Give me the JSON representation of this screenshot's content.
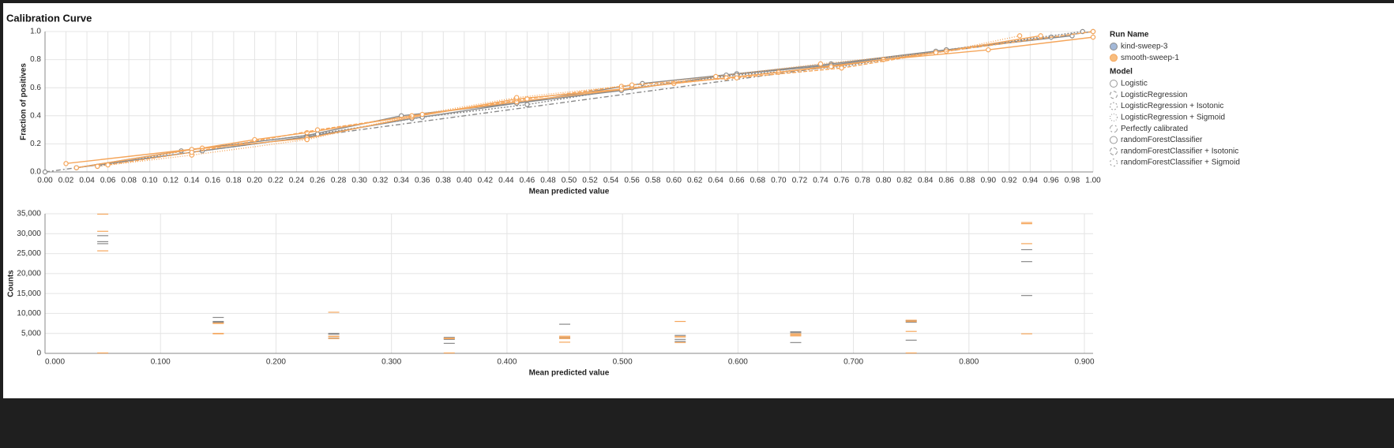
{
  "chart_data": [
    {
      "type": "line",
      "title": "Calibration Curve",
      "x_label": "Mean predicted value",
      "y_label": "Fraction of positives",
      "xlim": [
        0,
        1
      ],
      "ylim": [
        0,
        1
      ],
      "grid": true,
      "xticks": [
        {
          "value": 0,
          "label": "0.00"
        },
        {
          "value": 0.02,
          "label": "0.02"
        },
        {
          "value": 0.04,
          "label": "0.04"
        },
        {
          "value": 0.06,
          "label": "0.06"
        },
        {
          "value": 0.08,
          "label": "0.08"
        },
        {
          "value": 0.1,
          "label": "0.10"
        },
        {
          "value": 0.12,
          "label": "0.12"
        },
        {
          "value": 0.14,
          "label": "0.14"
        },
        {
          "value": 0.16,
          "label": "0.16"
        },
        {
          "value": 0.18,
          "label": "0.18"
        },
        {
          "value": 0.2,
          "label": "0.20"
        },
        {
          "value": 0.22,
          "label": "0.22"
        },
        {
          "value": 0.24,
          "label": "0.24"
        },
        {
          "value": 0.26,
          "label": "0.26"
        },
        {
          "value": 0.28,
          "label": "0.28"
        },
        {
          "value": 0.3,
          "label": "0.30"
        },
        {
          "value": 0.32,
          "label": "0.32"
        },
        {
          "value": 0.34,
          "label": "0.34"
        },
        {
          "value": 0.36,
          "label": "0.36"
        },
        {
          "value": 0.38,
          "label": "0.38"
        },
        {
          "value": 0.4,
          "label": "0.40"
        },
        {
          "value": 0.42,
          "label": "0.42"
        },
        {
          "value": 0.44,
          "label": "0.44"
        },
        {
          "value": 0.46,
          "label": "0.46"
        },
        {
          "value": 0.48,
          "label": "0.48"
        },
        {
          "value": 0.5,
          "label": "0.50"
        },
        {
          "value": 0.52,
          "label": "0.52"
        },
        {
          "value": 0.54,
          "label": "0.54"
        },
        {
          "value": 0.56,
          "label": "0.56"
        },
        {
          "value": 0.58,
          "label": "0.58"
        },
        {
          "value": 0.6,
          "label": "0.60"
        },
        {
          "value": 0.62,
          "label": "0.62"
        },
        {
          "value": 0.64,
          "label": "0.64"
        },
        {
          "value": 0.66,
          "label": "0.66"
        },
        {
          "value": 0.68,
          "label": "0.68"
        },
        {
          "value": 0.7,
          "label": "0.70"
        },
        {
          "value": 0.72,
          "label": "0.72"
        },
        {
          "value": 0.74,
          "label": "0.74"
        },
        {
          "value": 0.76,
          "label": "0.76"
        },
        {
          "value": 0.78,
          "label": "0.78"
        },
        {
          "value": 0.8,
          "label": "0.80"
        },
        {
          "value": 0.82,
          "label": "0.82"
        },
        {
          "value": 0.84,
          "label": "0.84"
        },
        {
          "value": 0.86,
          "label": "0.86"
        },
        {
          "value": 0.88,
          "label": "0.88"
        },
        {
          "value": 0.9,
          "label": "0.90"
        },
        {
          "value": 0.92,
          "label": "0.92"
        },
        {
          "value": 0.94,
          "label": "0.94"
        },
        {
          "value": 0.96,
          "label": "0.96"
        },
        {
          "value": 0.98,
          "label": "0.98"
        },
        {
          "value": 1,
          "label": "1.00"
        }
      ],
      "yticks": [
        {
          "value": 0,
          "label": "0.0"
        },
        {
          "value": 0.2,
          "label": "0.2"
        },
        {
          "value": 0.4,
          "label": "0.4"
        },
        {
          "value": 0.6,
          "label": "0.6"
        },
        {
          "value": 0.8,
          "label": "0.8"
        },
        {
          "value": 1,
          "label": "1.0"
        }
      ],
      "legend": {
        "run_title": "Run Name",
        "runs": [
          {
            "name": "kind-sweep-3",
            "color": "#a3b8d8",
            "line_color": "#8a8a8a"
          },
          {
            "name": "smooth-sweep-1",
            "color": "#f8bd7e",
            "line_color": "#f5a65b"
          }
        ],
        "model_title": "Model",
        "models": [
          {
            "name": "Logistic",
            "dash": "none"
          },
          {
            "name": "LogisticRegression",
            "dash": "4,3"
          },
          {
            "name": "LogisticRegression + Isotonic",
            "dash": "2,2"
          },
          {
            "name": "LogisticRegression + Sigmoid",
            "dash": "1,2"
          },
          {
            "name": "Perfectly calibrated",
            "dash": "6,3,2,3"
          },
          {
            "name": "randomForestClassifier",
            "dash": "none"
          },
          {
            "name": "randomForestClassifier + Isotonic",
            "dash": "5,2"
          },
          {
            "name": "randomForestClassifier + Sigmoid",
            "dash": "2,3"
          }
        ]
      },
      "series": [
        {
          "run": "kind-sweep-3",
          "model": "Logistic",
          "x": [
            0.03,
            0.13,
            0.25,
            0.34,
            0.45,
            0.57,
            0.66,
            0.75,
            0.86,
            0.98
          ],
          "values": [
            0.03,
            0.15,
            0.26,
            0.4,
            0.49,
            0.63,
            0.7,
            0.77,
            0.87,
            0.97
          ]
        },
        {
          "run": "kind-sweep-3",
          "model": "randomForestClassifier",
          "x": [
            0.03,
            0.15,
            0.25,
            0.35,
            0.45,
            0.55,
            0.65,
            0.75,
            0.85,
            0.96
          ],
          "values": [
            0.03,
            0.15,
            0.25,
            0.38,
            0.49,
            0.58,
            0.69,
            0.76,
            0.86,
            0.96
          ]
        },
        {
          "run": "kind-sweep-3",
          "model": "Perfectly calibrated",
          "x": [
            0,
            1
          ],
          "values": [
            0,
            1
          ]
        },
        {
          "run": "kind-sweep-3",
          "model": "LogisticRegression + Isotonic",
          "x": [
            0.05,
            0.14,
            0.26,
            0.36,
            0.46,
            0.56,
            0.66,
            0.76,
            0.86,
            0.99
          ],
          "values": [
            0.04,
            0.16,
            0.27,
            0.39,
            0.48,
            0.6,
            0.69,
            0.75,
            0.87,
            1.0
          ]
        },
        {
          "run": "smooth-sweep-1",
          "model": "Logistic",
          "x": [
            0.02,
            0.15,
            0.2,
            0.25,
            0.35,
            0.45,
            0.6,
            0.7,
            0.8,
            0.9,
            1.0
          ],
          "values": [
            0.06,
            0.17,
            0.23,
            0.28,
            0.4,
            0.5,
            0.63,
            0.71,
            0.8,
            0.87,
            0.96
          ]
        },
        {
          "run": "smooth-sweep-1",
          "model": "randomForestClassifier",
          "x": [
            0.03,
            0.14,
            0.25,
            0.35,
            0.45,
            0.55,
            0.65,
            0.75,
            0.85,
            0.95
          ],
          "values": [
            0.03,
            0.16,
            0.24,
            0.39,
            0.52,
            0.59,
            0.67,
            0.75,
            0.85,
            0.97
          ]
        },
        {
          "run": "smooth-sweep-1",
          "model": "LogisticRegression + Sigmoid",
          "x": [
            0.05,
            0.14,
            0.25,
            0.35,
            0.45,
            0.55,
            0.64,
            0.74,
            0.86,
            0.93
          ],
          "values": [
            0.04,
            0.12,
            0.23,
            0.4,
            0.53,
            0.61,
            0.68,
            0.77,
            0.86,
            0.97
          ]
        },
        {
          "run": "smooth-sweep-1",
          "model": "randomForestClassifier + Isotonic",
          "x": [
            0.06,
            0.14,
            0.26,
            0.36,
            0.46,
            0.56,
            0.66,
            0.76,
            0.85,
            1.0
          ],
          "values": [
            0.05,
            0.14,
            0.3,
            0.41,
            0.52,
            0.62,
            0.67,
            0.74,
            0.85,
            1.0
          ]
        }
      ]
    },
    {
      "type": "tick",
      "x_label": "Mean predicted value",
      "y_label": "Counts",
      "xlim": [
        0,
        0.9075
      ],
      "ylim": [
        0,
        35000
      ],
      "grid": true,
      "xticks": [
        {
          "value": 0,
          "label": "0.000"
        },
        {
          "value": 0.1,
          "label": "0.100"
        },
        {
          "value": 0.2,
          "label": "0.200"
        },
        {
          "value": 0.3,
          "label": "0.300"
        },
        {
          "value": 0.4,
          "label": "0.400"
        },
        {
          "value": 0.5,
          "label": "0.500"
        },
        {
          "value": 0.6,
          "label": "0.600"
        },
        {
          "value": 0.7,
          "label": "0.700"
        },
        {
          "value": 0.8,
          "label": "0.800"
        },
        {
          "value": 0.9,
          "label": "0.900"
        }
      ],
      "yticks": [
        0,
        {
          "value": 5000,
          "label": "5,000"
        },
        {
          "value": 10000,
          "label": "10,000"
        },
        {
          "value": 15000,
          "label": "15,000"
        },
        {
          "value": 20000,
          "label": "20,000"
        },
        {
          "value": 25000,
          "label": "25,000"
        },
        {
          "value": 30000,
          "label": "30,000"
        },
        {
          "value": 35000,
          "label": "35,000"
        }
      ],
      "x": [
        0.05,
        0.15,
        0.25,
        0.35,
        0.45,
        0.55,
        0.65,
        0.75,
        0.85
      ],
      "series": [
        {
          "run": "kind-sweep-3",
          "model": "Logistic",
          "values": [
            28000,
            8000,
            5000,
            3500,
            7300,
            3000,
            5200,
            8200,
            26000
          ]
        },
        {
          "run": "kind-sweep-3",
          "model": "randomForestClassifier",
          "values": [
            27500,
            9000,
            4800,
            2500,
            4000,
            4500,
            2700,
            3300,
            14500
          ]
        },
        {
          "run": "kind-sweep-3",
          "model": "LogisticRegression + Isotonic",
          "values": [
            29500,
            7800,
            3800,
            4000,
            3800,
            3500,
            5400,
            7800,
            23000
          ]
        },
        {
          "run": "smooth-sweep-1",
          "model": "Logistic",
          "values": [
            34900,
            7500,
            4300,
            3700,
            4300,
            8000,
            4400,
            8000,
            32500
          ]
        },
        {
          "run": "smooth-sweep-1",
          "model": "randomForestClassifier",
          "values": [
            25700,
            4900,
            10300,
            100,
            2800,
            2700,
            4400,
            5500,
            4900
          ]
        },
        {
          "run": "smooth-sweep-1",
          "model": "LogisticRegression + Sigmoid",
          "values": [
            30600,
            7600,
            3700,
            3700,
            3700,
            4100,
            4700,
            8300,
            32800
          ]
        },
        {
          "run": "smooth-sweep-1",
          "model": "randomForestClassifier + Isotonic",
          "values": [
            100,
            5000,
            4200,
            3800,
            4000,
            4200,
            4900,
            100,
            27500
          ]
        }
      ]
    }
  ]
}
